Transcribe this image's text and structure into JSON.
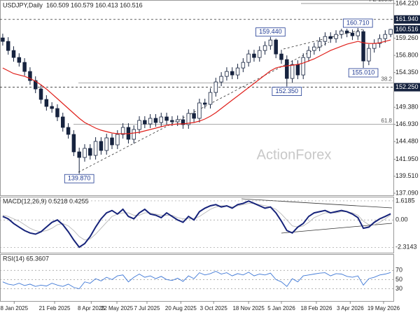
{
  "chart_data": [
    {
      "type": "candlestick",
      "symbol": "USDJPY,Daily",
      "ohlc_label": "160.509 160.579 160.413 160.516",
      "watermark": "ActionForex",
      "ylim": [
        136.79,
        164.62
      ],
      "yticks": [
        {
          "value": 164.22,
          "label": "164.220"
        },
        {
          "value": 159.26,
          "label": "159.260"
        },
        {
          "value": 156.8,
          "label": "156.800"
        },
        {
          "value": 154.35,
          "label": "154.350"
        },
        {
          "value": 149.38,
          "label": "149.380"
        },
        {
          "value": 146.93,
          "label": "146.930"
        },
        {
          "value": 144.48,
          "label": "144.480"
        },
        {
          "value": 141.95,
          "label": "141.950"
        },
        {
          "value": 139.51,
          "label": "139.510"
        },
        {
          "value": 137.09,
          "label": "137.090"
        }
      ],
      "open": [
        159.3,
        158.8,
        157.5,
        156.5,
        155.8,
        154.5,
        153.2,
        152.0,
        150.5,
        149.5,
        149.2,
        148.0,
        146.5,
        145.5,
        143.0,
        142.2,
        143.5,
        142.5,
        144.5,
        143.2,
        145.0,
        144.0,
        145.5,
        146.5,
        144.8,
        146.2,
        147.5,
        147.0,
        147.8,
        147.2,
        148.0,
        147.5,
        147.3,
        147.6,
        146.9,
        148.5,
        147.8,
        150.0,
        149.8,
        151.5,
        153.0,
        153.8,
        154.5,
        154.0,
        155.0,
        155.8,
        157.0,
        156.5,
        157.5,
        158.2,
        159.0,
        157.0,
        156.2,
        153.5,
        155.5,
        154.0,
        156.5,
        157.5,
        158.0,
        158.8,
        159.5,
        159.2,
        159.8,
        160.3,
        160.0,
        159.6,
        160.2,
        156.0,
        157.8,
        158.5,
        159.2,
        159.8
      ],
      "high": [
        159.9,
        159.4,
        158.1,
        157.1,
        156.4,
        155.1,
        153.8,
        152.6,
        151.1,
        150.1,
        149.8,
        148.6,
        147.1,
        146.1,
        143.6,
        144.1,
        144.1,
        145.1,
        145.1,
        145.6,
        145.6,
        146.1,
        147.1,
        147.1,
        146.8,
        148.1,
        148.1,
        148.4,
        148.4,
        148.6,
        148.6,
        148.1,
        148.2,
        148.2,
        149.1,
        149.1,
        150.6,
        150.6,
        152.1,
        153.6,
        154.4,
        155.1,
        155.1,
        155.6,
        156.4,
        157.6,
        157.6,
        158.1,
        158.8,
        159.44,
        159.2,
        157.6,
        156.8,
        156.1,
        156.1,
        157.1,
        158.1,
        158.6,
        159.4,
        160.1,
        160.1,
        160.4,
        160.6,
        160.6,
        160.5,
        160.71,
        160.5,
        158.4,
        159.1,
        159.8,
        160.4,
        160.579
      ],
      "low": [
        158.2,
        156.9,
        155.9,
        155.2,
        153.9,
        152.6,
        151.4,
        149.9,
        148.9,
        148.6,
        147.4,
        145.9,
        144.9,
        142.4,
        139.87,
        141.6,
        141.9,
        141.9,
        142.6,
        142.6,
        143.4,
        143.4,
        144.9,
        144.2,
        144.2,
        145.6,
        146.4,
        146.4,
        146.6,
        146.6,
        146.9,
        146.7,
        146.7,
        146.3,
        146.3,
        147.2,
        147.2,
        149.2,
        149.2,
        150.9,
        152.4,
        153.2,
        153.4,
        153.4,
        154.4,
        155.2,
        155.9,
        155.9,
        156.9,
        157.6,
        156.4,
        155.6,
        152.35,
        152.9,
        153.4,
        153.4,
        155.9,
        156.9,
        157.4,
        158.2,
        158.6,
        158.6,
        159.2,
        159.4,
        159.0,
        159.0,
        155.01,
        155.4,
        157.2,
        157.9,
        158.6,
        159.4
      ],
      "close": [
        158.8,
        157.5,
        156.5,
        155.8,
        154.5,
        153.2,
        152.0,
        150.5,
        149.5,
        149.2,
        148.0,
        146.5,
        145.5,
        143.0,
        142.2,
        143.5,
        142.5,
        144.5,
        143.2,
        145.0,
        144.0,
        145.5,
        146.5,
        144.8,
        146.2,
        147.5,
        147.0,
        147.8,
        147.2,
        148.0,
        147.5,
        147.3,
        147.6,
        146.9,
        148.5,
        147.8,
        150.0,
        149.8,
        151.5,
        153.0,
        153.8,
        154.5,
        154.0,
        155.0,
        155.8,
        157.0,
        156.5,
        157.5,
        158.2,
        159.0,
        157.0,
        156.2,
        153.5,
        155.5,
        154.0,
        156.5,
        157.5,
        158.0,
        158.8,
        159.5,
        159.2,
        159.8,
        160.3,
        160.0,
        159.6,
        160.2,
        156.0,
        157.8,
        158.5,
        159.2,
        159.8,
        160.516
      ],
      "up_color": "#ffffff",
      "down_color": "#16233f",
      "wick_color": "#16233f",
      "moving_average": {
        "color": "#e0201b",
        "values": [
          155.0,
          154.6,
          154.2,
          154.0,
          153.8,
          153.5,
          153.1,
          152.6,
          152.0,
          151.3,
          150.6,
          149.9,
          149.2,
          148.5,
          147.8,
          147.2,
          146.8,
          146.4,
          146.1,
          145.9,
          145.7,
          145.6,
          145.6,
          145.6,
          145.7,
          145.8,
          146.0,
          146.2,
          146.4,
          146.6,
          146.8,
          146.9,
          147.0,
          147.0,
          147.1,
          147.2,
          147.4,
          147.7,
          148.1,
          148.6,
          149.2,
          149.8,
          150.4,
          151.0,
          151.6,
          152.2,
          152.8,
          153.4,
          154.0,
          154.6,
          155.0,
          155.2,
          155.3,
          155.4,
          155.5,
          155.7,
          156.0,
          156.3,
          156.7,
          157.1,
          157.5,
          157.8,
          158.1,
          158.4,
          158.6,
          158.8,
          158.6,
          158.5,
          158.5,
          158.6,
          158.8,
          159.0
        ]
      },
      "levels": [
        {
          "value": 161.94,
          "label": "161.940"
        },
        {
          "value": 152.25,
          "label": "152.250"
        }
      ],
      "fib_levels": [
        {
          "value": 164.22,
          "label": "FE 100.0"
        },
        {
          "value": 152.85,
          "label": "38.2"
        },
        {
          "value": 146.93,
          "label": "61.8"
        }
      ],
      "point_labels": [
        {
          "index": 49,
          "value": 159.44,
          "label": "159.440"
        },
        {
          "index": 65,
          "value": 160.71,
          "label": "160.710"
        },
        {
          "index": 66,
          "value": 155.01,
          "label": "155.010"
        },
        {
          "index": 52,
          "value": 152.35,
          "label": "152.350"
        },
        {
          "index": 14,
          "value": 139.87,
          "label": "139.870"
        }
      ]
    },
    {
      "type": "line",
      "label": "MACD(12,26,9) 0.5218 0.4255",
      "ylim": [
        -2.77,
        1.91
      ],
      "yticks": [
        1.6185,
        {
          "value": 0,
          "label": "0.00"
        },
        -2.3143
      ],
      "series": [
        {
          "color": "#16237a",
          "values": [
            0.3,
            0.1,
            -0.3,
            -0.6,
            -0.9,
            -1.1,
            -1.2,
            -1.0,
            -0.6,
            -0.2,
            0.0,
            -0.4,
            -1.0,
            -1.7,
            -2.3,
            -2.0,
            -1.4,
            -0.6,
            0.1,
            0.6,
            0.8,
            0.5,
            0.9,
            0.3,
            0.1,
            0.6,
            0.9,
            0.5,
            0.4,
            0.2,
            0.6,
            0.3,
            0.0,
            -0.2,
            0.3,
            0.0,
            0.7,
            1.0,
            1.2,
            1.3,
            1.1,
            1.2,
            1.0,
            1.3,
            1.4,
            1.6,
            1.4,
            1.2,
            1.0,
            1.1,
            0.6,
            -0.1,
            -0.9,
            -1.1,
            -0.6,
            -0.3,
            0.3,
            0.6,
            0.7,
            0.8,
            0.6,
            0.7,
            0.8,
            0.7,
            0.5,
            0.2,
            -0.7,
            -0.6,
            -0.2,
            0.1,
            0.3,
            0.5218
          ]
        },
        {
          "color": "#b8b8b8",
          "values": [
            0.4,
            0.3,
            0.1,
            -0.1,
            -0.4,
            -0.7,
            -0.9,
            -1.0,
            -0.9,
            -0.7,
            -0.4,
            -0.3,
            -0.5,
            -0.9,
            -1.4,
            -1.7,
            -1.6,
            -1.2,
            -0.7,
            -0.2,
            0.3,
            0.5,
            0.6,
            0.6,
            0.4,
            0.4,
            0.6,
            0.6,
            0.5,
            0.4,
            0.4,
            0.4,
            0.2,
            0.1,
            0.1,
            0.1,
            0.3,
            0.6,
            0.9,
            1.1,
            1.2,
            1.2,
            1.1,
            1.2,
            1.3,
            1.4,
            1.4,
            1.3,
            1.2,
            1.1,
            0.9,
            0.5,
            0.0,
            -0.5,
            -0.6,
            -0.5,
            -0.2,
            0.2,
            0.4,
            0.6,
            0.6,
            0.6,
            0.7,
            0.7,
            0.6,
            0.4,
            -0.1,
            -0.4,
            -0.4,
            -0.2,
            0.1,
            0.4255
          ]
        }
      ]
    },
    {
      "type": "line",
      "label": "RSI(14) 65.3607",
      "ylim": [
        3.3,
        104
      ],
      "yticks": [
        30,
        50,
        70
      ],
      "series": [
        {
          "color": "#3f78d6",
          "values": [
            45,
            40,
            38,
            42,
            37,
            40,
            35,
            38,
            36,
            42,
            38,
            35,
            40,
            33,
            30,
            45,
            42,
            52,
            47,
            55,
            50,
            58,
            60,
            45,
            55,
            62,
            55,
            58,
            52,
            57,
            50,
            48,
            53,
            46,
            58,
            52,
            65,
            60,
            63,
            68,
            62,
            65,
            58,
            63,
            60,
            66,
            58,
            62,
            60,
            64,
            50,
            45,
            35,
            52,
            45,
            58,
            60,
            62,
            64,
            65,
            58,
            63,
            62,
            57,
            55,
            58,
            38,
            52,
            55,
            60,
            62,
            65.3607
          ]
        }
      ],
      "xlim": [
        -0.5,
        71.5
      ],
      "xticks": [
        {
          "value": 2.1,
          "label": "8 Jan 2025"
        },
        {
          "value": 9.5,
          "label": "21 Feb 2025"
        },
        {
          "value": 16.2,
          "label": "8 Apr 2025"
        },
        {
          "value": 20.9,
          "label": "22 May 2025"
        },
        {
          "value": 26.4,
          "label": "7 Jul 2025"
        },
        {
          "value": 32.6,
          "label": "20 Aug 2025"
        },
        {
          "value": 38.6,
          "label": "3 Oct 2025"
        },
        {
          "value": 45.0,
          "label": "18 Nov 2025"
        },
        {
          "value": 51.0,
          "label": "5 Jan 2026"
        },
        {
          "value": 57.4,
          "label": "18 Feb 2026"
        },
        {
          "value": 63.6,
          "label": "3 Apr 2026"
        },
        {
          "value": 69.7,
          "label": "19 May 2026"
        }
      ]
    }
  ]
}
